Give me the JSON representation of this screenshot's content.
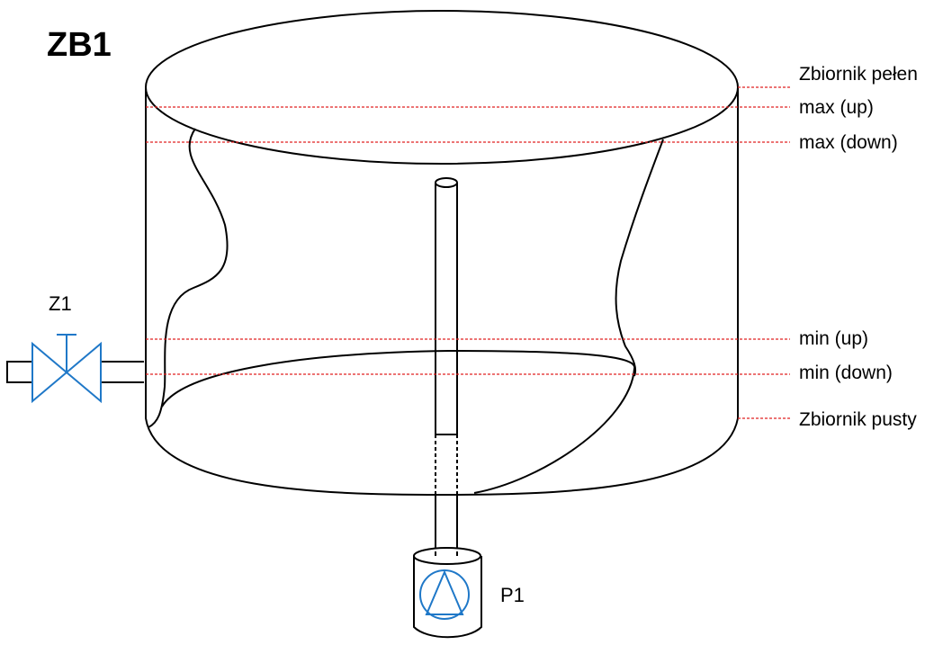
{
  "title": "ZB1",
  "valve": {
    "label": "Z1",
    "color": "#1f78c8"
  },
  "pump": {
    "label": "P1",
    "color": "#1f78c8"
  },
  "levels": {
    "full": "Zbiornik pełen",
    "max_up": "max (up)",
    "max_down": "max (down)",
    "min_up": "min (up)",
    "min_down": "min (down)",
    "empty": "Zbiornik pusty"
  },
  "colors": {
    "line": "#000000",
    "level_line": "#e02020",
    "equipment": "#1f78c8"
  }
}
